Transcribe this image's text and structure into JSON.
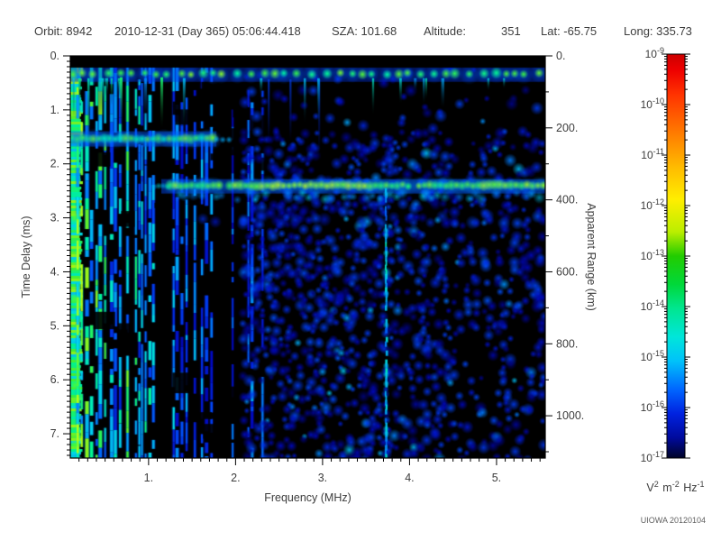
{
  "header": {
    "items": [
      "Orbit: 8942",
      "2010-12-31 (Day 365) 05:06:44.418",
      "SZA: 101.68",
      "Altitude:",
      "351",
      "Lat: -65.75",
      "Long: 335.73"
    ]
  },
  "chart_data": {
    "type": "heatmap",
    "title": "",
    "description": "MARSIS-style ionogram spectrogram: spectral density vs frequency and time delay",
    "x_axis": {
      "label": "Frequency (MHz)",
      "range": [
        0.1,
        5.56
      ],
      "major_ticks": [
        {
          "v": 1,
          "t": "1."
        },
        {
          "v": 2,
          "t": "2."
        },
        {
          "v": 3,
          "t": "3."
        },
        {
          "v": 4,
          "t": "4."
        },
        {
          "v": 5,
          "t": "5."
        }
      ],
      "minor_step": 0.1
    },
    "y_left": {
      "label": "Time Delay (ms)",
      "range": [
        0,
        7.45
      ],
      "major_ticks": [
        {
          "v": 0,
          "t": "0."
        },
        {
          "v": 1,
          "t": "1."
        },
        {
          "v": 2,
          "t": "2."
        },
        {
          "v": 3,
          "t": "3."
        },
        {
          "v": 4,
          "t": "4."
        },
        {
          "v": 5,
          "t": "5."
        },
        {
          "v": 6,
          "t": "6."
        },
        {
          "v": 7,
          "t": "7."
        }
      ],
      "minor_step": 0.1
    },
    "y_right": {
      "label": "Apparent Range (km)",
      "range": [
        0,
        1117
      ],
      "km_per_ms": 150,
      "major_ticks": [
        {
          "v": 0,
          "t": "0."
        },
        {
          "v": 200,
          "t": "200."
        },
        {
          "v": 400,
          "t": "400."
        },
        {
          "v": 600,
          "t": "600."
        },
        {
          "v": 800,
          "t": "800."
        },
        {
          "v": 1000,
          "t": "1000."
        }
      ],
      "minor_step": 100
    },
    "colorbar": {
      "scale": "log",
      "max": "1e-9",
      "min": "1e-17",
      "tick_exponents": [
        -9,
        -10,
        -11,
        -12,
        -13,
        -14,
        -15,
        -16,
        -17
      ],
      "unit_parts": [
        [
          "V",
          "2"
        ],
        [
          " m",
          "-2"
        ],
        [
          " Hz",
          "-1"
        ]
      ],
      "gradient": [
        [
          0.0,
          "#cc0000"
        ],
        [
          0.04,
          "#ee0000"
        ],
        [
          0.1,
          "#ff3300"
        ],
        [
          0.19,
          "#ff7700"
        ],
        [
          0.28,
          "#ffbb00"
        ],
        [
          0.36,
          "#ffee00"
        ],
        [
          0.44,
          "#bbee00"
        ],
        [
          0.5,
          "#22cc00"
        ],
        [
          0.57,
          "#00d83a"
        ],
        [
          0.63,
          "#00e690"
        ],
        [
          0.7,
          "#00e6da"
        ],
        [
          0.76,
          "#00c2fa"
        ],
        [
          0.83,
          "#0066ff"
        ],
        [
          0.89,
          "#0022e0"
        ],
        [
          0.95,
          "#000a9c"
        ],
        [
          1.0,
          "#000428"
        ]
      ]
    },
    "palette_low": [
      [
        0.0,
        0,
        0,
        0
      ],
      [
        0.1,
        0,
        0,
        85
      ],
      [
        0.25,
        0,
        8,
        200
      ],
      [
        0.4,
        0,
        75,
        255
      ],
      [
        0.53,
        0,
        155,
        255
      ],
      [
        0.64,
        0,
        228,
        238
      ],
      [
        0.74,
        0,
        255,
        150
      ],
      [
        0.84,
        64,
        250,
        56
      ],
      [
        0.92,
        145,
        255,
        30
      ],
      [
        1.0,
        225,
        255,
        0
      ]
    ],
    "features": {
      "top_blank_ms": 0.22,
      "transmit_pulse": {
        "time_ms": 0.33,
        "freq_mhz": [
          0.1,
          5.56
        ]
      },
      "plasma_stripes": {
        "freq_mhz": [
          0.1,
          2.35
        ],
        "desc": "dense vertical striping, brightest below 1 MHz"
      },
      "band1": {
        "time_ms": 1.53,
        "freq_mhz": [
          0.1,
          1.78
        ]
      },
      "echo_band": {
        "time_ms": 2.4,
        "freq_mhz": [
          1.25,
          5.56
        ],
        "desc": "strong green echo trace"
      },
      "faint_band": {
        "time_ms": 3.05,
        "freq_mhz": [
          1.6,
          4.9
        ]
      },
      "vline": {
        "freq_mhz": 3.72,
        "time_ms": [
          2.45,
          7.45
        ],
        "desc": "narrow cyan interference line"
      },
      "blob_noise": {
        "freq_mhz": [
          2.1,
          5.56
        ],
        "desc": "speckled blue noise, sparser toward upper right"
      }
    },
    "credit": "UIOWA 20120104"
  }
}
